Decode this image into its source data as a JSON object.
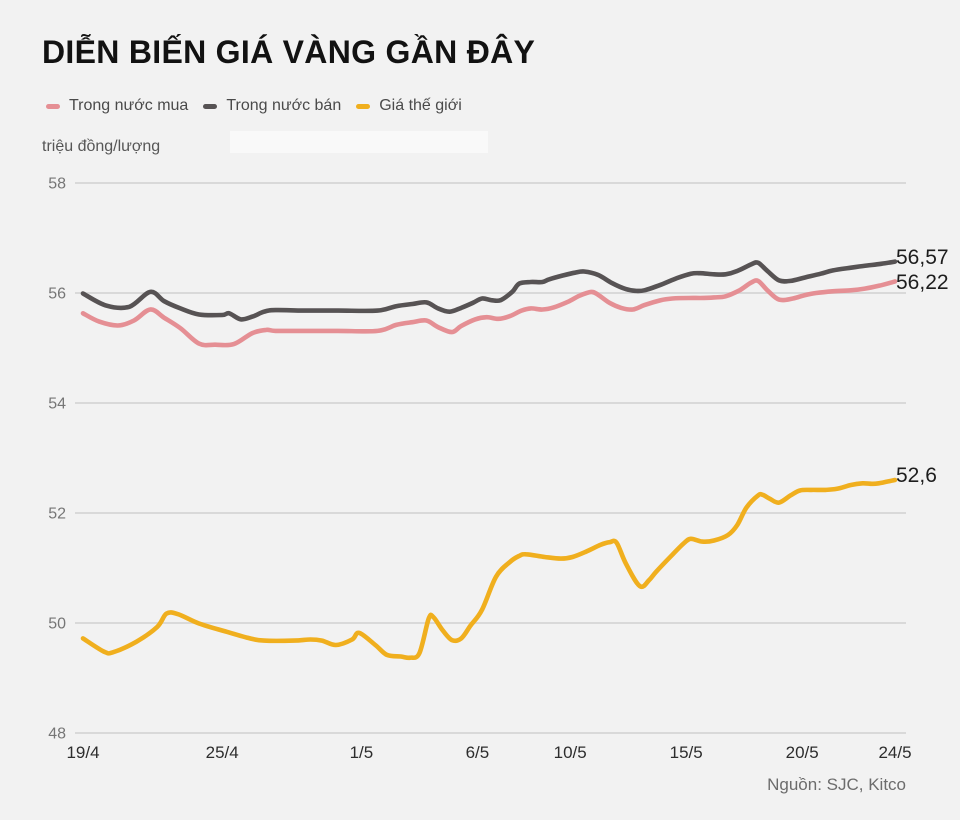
{
  "source": "Nguồn: SJC, Kitco",
  "chart_data": {
    "type": "line",
    "title": "DIỄN BIẾN GIÁ VÀNG GẦN ĐÂY",
    "xlabel": "",
    "ylabel": "triệu đồng/lượng",
    "ylim": [
      48,
      58
    ],
    "yticks": [
      58,
      56,
      54,
      52,
      50,
      48
    ],
    "grid": "horizontal",
    "legend_position": "top-left",
    "x_unit": "days since 19/4 (x runs 19/4 to 24/5)",
    "xticks": [
      {
        "pos": 0,
        "label": "19/4"
      },
      {
        "pos": 6,
        "label": "25/4"
      },
      {
        "pos": 12,
        "label": "1/5"
      },
      {
        "pos": 17,
        "label": "6/5"
      },
      {
        "pos": 21,
        "label": "10/5"
      },
      {
        "pos": 26,
        "label": "15/5"
      },
      {
        "pos": 31,
        "label": "20/5"
      },
      {
        "pos": 35,
        "label": "24/5"
      }
    ],
    "series": [
      {
        "name": "Trong nước mua",
        "color": "#e58f94",
        "end_label": "56,22",
        "points": [
          [
            0,
            55.63
          ],
          [
            0.7,
            55.48
          ],
          [
            1.5,
            55.41
          ],
          [
            2.2,
            55.5
          ],
          [
            2.9,
            55.7
          ],
          [
            3.5,
            55.55
          ],
          [
            4.2,
            55.36
          ],
          [
            5.0,
            55.08
          ],
          [
            5.7,
            55.06
          ],
          [
            6.5,
            55.07
          ],
          [
            7.3,
            55.27
          ],
          [
            7.9,
            55.33
          ],
          [
            8.3,
            55.31
          ],
          [
            9.5,
            55.31
          ],
          [
            11,
            55.31
          ],
          [
            12.7,
            55.31
          ],
          [
            13.5,
            55.42
          ],
          [
            14.2,
            55.47
          ],
          [
            14.8,
            55.5
          ],
          [
            15.3,
            55.38
          ],
          [
            15.9,
            55.29
          ],
          [
            16.3,
            55.4
          ],
          [
            16.9,
            55.52
          ],
          [
            17.4,
            55.56
          ],
          [
            17.9,
            55.53
          ],
          [
            18.4,
            55.58
          ],
          [
            18.9,
            55.68
          ],
          [
            19.3,
            55.72
          ],
          [
            19.8,
            55.7
          ],
          [
            20.3,
            55.74
          ],
          [
            20.9,
            55.84
          ],
          [
            21.4,
            55.95
          ],
          [
            21.9,
            56.02
          ],
          [
            22.2,
            55.97
          ],
          [
            22.7,
            55.82
          ],
          [
            23.2,
            55.73
          ],
          [
            23.7,
            55.7
          ],
          [
            24.2,
            55.78
          ],
          [
            24.9,
            55.87
          ],
          [
            25.4,
            55.9
          ],
          [
            26.1,
            55.91
          ],
          [
            26.6,
            55.91
          ],
          [
            27.2,
            55.92
          ],
          [
            27.7,
            55.94
          ],
          [
            28.3,
            56.05
          ],
          [
            28.8,
            56.19
          ],
          [
            29.1,
            56.22
          ],
          [
            29.5,
            56.05
          ],
          [
            30.0,
            55.88
          ],
          [
            30.6,
            55.9
          ],
          [
            31.1,
            55.96
          ],
          [
            31.6,
            56.0
          ],
          [
            32.3,
            56.03
          ],
          [
            33.1,
            56.05
          ],
          [
            33.7,
            56.08
          ],
          [
            34.3,
            56.13
          ],
          [
            35,
            56.21
          ]
        ]
      },
      {
        "name": "Trong nước bán",
        "color": "#575354",
        "end_label": "56,57",
        "points": [
          [
            0,
            55.99
          ],
          [
            1.0,
            55.77
          ],
          [
            2.0,
            55.75
          ],
          [
            2.9,
            56.02
          ],
          [
            3.5,
            55.85
          ],
          [
            4.2,
            55.72
          ],
          [
            5.0,
            55.61
          ],
          [
            6.0,
            55.6
          ],
          [
            6.3,
            55.63
          ],
          [
            6.8,
            55.52
          ],
          [
            7.3,
            55.57
          ],
          [
            7.8,
            55.66
          ],
          [
            8.3,
            55.69
          ],
          [
            9.5,
            55.68
          ],
          [
            11,
            55.68
          ],
          [
            12.7,
            55.68
          ],
          [
            13.5,
            55.76
          ],
          [
            14.2,
            55.8
          ],
          [
            14.8,
            55.83
          ],
          [
            15.3,
            55.72
          ],
          [
            15.8,
            55.66
          ],
          [
            16.3,
            55.73
          ],
          [
            16.8,
            55.82
          ],
          [
            17.2,
            55.9
          ],
          [
            17.6,
            55.87
          ],
          [
            18.0,
            55.87
          ],
          [
            18.5,
            56.02
          ],
          [
            18.8,
            56.17
          ],
          [
            19.3,
            56.2
          ],
          [
            19.8,
            56.2
          ],
          [
            20.1,
            56.25
          ],
          [
            20.7,
            56.32
          ],
          [
            21.2,
            56.37
          ],
          [
            21.6,
            56.39
          ],
          [
            22.2,
            56.33
          ],
          [
            22.8,
            56.18
          ],
          [
            23.4,
            56.07
          ],
          [
            23.8,
            56.04
          ],
          [
            24.2,
            56.05
          ],
          [
            24.9,
            56.15
          ],
          [
            25.6,
            56.27
          ],
          [
            26.2,
            56.35
          ],
          [
            26.6,
            56.36
          ],
          [
            27.2,
            56.34
          ],
          [
            27.7,
            56.34
          ],
          [
            28.2,
            56.4
          ],
          [
            28.8,
            56.52
          ],
          [
            29.1,
            56.55
          ],
          [
            29.5,
            56.4
          ],
          [
            30.0,
            56.23
          ],
          [
            30.5,
            56.22
          ],
          [
            31.1,
            56.28
          ],
          [
            31.8,
            56.35
          ],
          [
            32.3,
            56.41
          ],
          [
            33.1,
            56.46
          ],
          [
            33.8,
            56.5
          ],
          [
            34.4,
            56.53
          ],
          [
            35,
            56.57
          ]
        ]
      },
      {
        "name": "Giá thế giới",
        "color": "#f0af1e",
        "end_label": "52,6",
        "points": [
          [
            0,
            49.72
          ],
          [
            0.9,
            49.48
          ],
          [
            1.3,
            49.47
          ],
          [
            2.3,
            49.66
          ],
          [
            3.2,
            49.93
          ],
          [
            3.6,
            50.17
          ],
          [
            4.1,
            50.16
          ],
          [
            5.0,
            49.99
          ],
          [
            6.2,
            49.84
          ],
          [
            7.2,
            49.72
          ],
          [
            7.8,
            49.68
          ],
          [
            9.1,
            49.68
          ],
          [
            9.8,
            49.7
          ],
          [
            10.3,
            49.68
          ],
          [
            10.9,
            49.6
          ],
          [
            11.6,
            49.7
          ],
          [
            11.9,
            49.82
          ],
          [
            12.6,
            49.6
          ],
          [
            13.1,
            49.42
          ],
          [
            13.7,
            49.39
          ],
          [
            14.1,
            49.37
          ],
          [
            14.5,
            49.45
          ],
          [
            14.9,
            50.08
          ],
          [
            15.1,
            50.11
          ],
          [
            15.5,
            49.87
          ],
          [
            15.9,
            49.69
          ],
          [
            16.3,
            49.72
          ],
          [
            16.7,
            49.95
          ],
          [
            17.2,
            50.24
          ],
          [
            17.8,
            50.84
          ],
          [
            18.4,
            51.11
          ],
          [
            18.8,
            51.22
          ],
          [
            19.1,
            51.25
          ],
          [
            19.9,
            51.2
          ],
          [
            20.6,
            51.17
          ],
          [
            21.1,
            51.2
          ],
          [
            21.7,
            51.3
          ],
          [
            22.3,
            51.42
          ],
          [
            22.7,
            51.47
          ],
          [
            23.0,
            51.46
          ],
          [
            23.4,
            51.08
          ],
          [
            24.0,
            50.67
          ],
          [
            24.4,
            50.78
          ],
          [
            24.7,
            50.93
          ],
          [
            25.4,
            51.24
          ],
          [
            25.9,
            51.45
          ],
          [
            26.2,
            51.53
          ],
          [
            26.7,
            51.48
          ],
          [
            27.2,
            51.5
          ],
          [
            27.8,
            51.6
          ],
          [
            28.2,
            51.78
          ],
          [
            28.6,
            52.1
          ],
          [
            29.1,
            52.32
          ],
          [
            29.3,
            52.33
          ],
          [
            29.6,
            52.26
          ],
          [
            30.0,
            52.19
          ],
          [
            30.5,
            52.32
          ],
          [
            30.9,
            52.41
          ],
          [
            31.4,
            52.42
          ],
          [
            32.0,
            52.42
          ],
          [
            32.5,
            52.44
          ],
          [
            33.1,
            52.51
          ],
          [
            33.6,
            52.54
          ],
          [
            34.0,
            52.53
          ],
          [
            34.3,
            52.54
          ],
          [
            35,
            52.6
          ]
        ]
      }
    ],
    "style": {
      "background": "#f2f2f2",
      "gridline_color": "#d9d9d9",
      "y_tick_color": "#767676",
      "x_tick_color": "#2d2d2d",
      "line_width": 4.6
    }
  }
}
